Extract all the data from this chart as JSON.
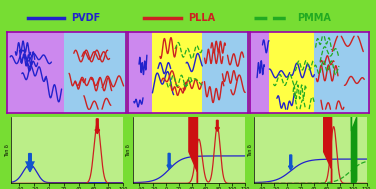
{
  "bg_outer": "#77dd33",
  "bg_box_left_purple": "#cc88ee",
  "bg_box_left_blue": "#99ccee",
  "bg_box_mid_purple": "#cc88ee",
  "bg_box_mid_yellow": "#ffff44",
  "bg_box_mid_blue": "#99ccee",
  "bg_box_right_purple": "#cc88ee",
  "bg_box_right_yellow": "#ffff44",
  "bg_box_right_blue": "#99ccee",
  "pvdf_color": "#2222cc",
  "plla_color": "#cc2222",
  "pmma_color": "#22aa22",
  "arrow_blue": "#1155cc",
  "arrow_red": "#cc1111",
  "arrow_green": "#119911",
  "panel_bg": "#bbee88",
  "border_color": "#9900aa",
  "legend_pvdf": "PVDF",
  "legend_plla": "PLLA",
  "legend_pmma": "PMMA"
}
